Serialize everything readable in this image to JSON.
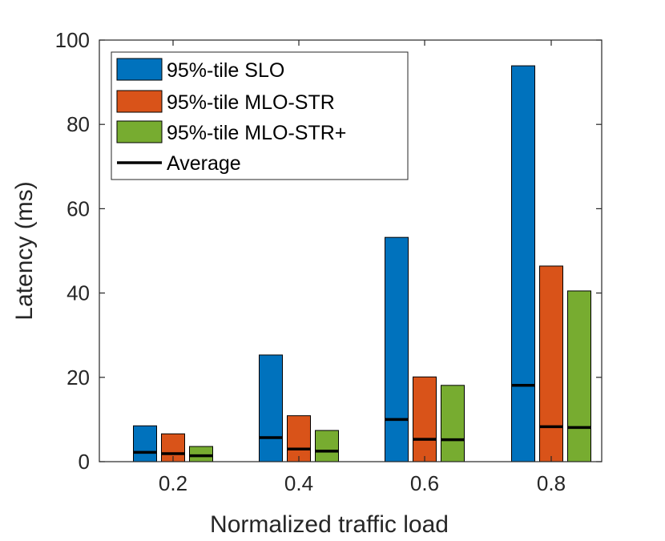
{
  "chart_data": {
    "type": "bar",
    "title": "",
    "xlabel": "Normalized traffic load",
    "ylabel": "Latency (ms)",
    "categories": [
      "0.2",
      "0.4",
      "0.6",
      "0.8"
    ],
    "ylim": [
      0,
      100
    ],
    "yticks": [
      "0",
      "20",
      "40",
      "60",
      "80",
      "100"
    ],
    "series": [
      {
        "name": "95%-tile SLO",
        "color": "#0072BD",
        "values": [
          8.5,
          25.3,
          53.2,
          93.9
        ],
        "average": [
          2.2,
          5.7,
          10.0,
          18.1
        ]
      },
      {
        "name": "95%-tile MLO-STR",
        "color": "#D95319",
        "values": [
          6.6,
          10.9,
          20.1,
          46.4
        ],
        "average": [
          1.9,
          3.0,
          5.3,
          8.3
        ]
      },
      {
        "name": "95%-tile MLO-STR+",
        "color": "#77AC30",
        "values": [
          3.6,
          7.4,
          18.1,
          40.5
        ],
        "average": [
          1.4,
          2.5,
          5.2,
          8.1
        ]
      }
    ],
    "legend": {
      "position": "top-left",
      "entries": [
        "95%-tile SLO",
        "95%-tile MLO-STR",
        "95%-tile MLO-STR+",
        "Average"
      ]
    }
  }
}
